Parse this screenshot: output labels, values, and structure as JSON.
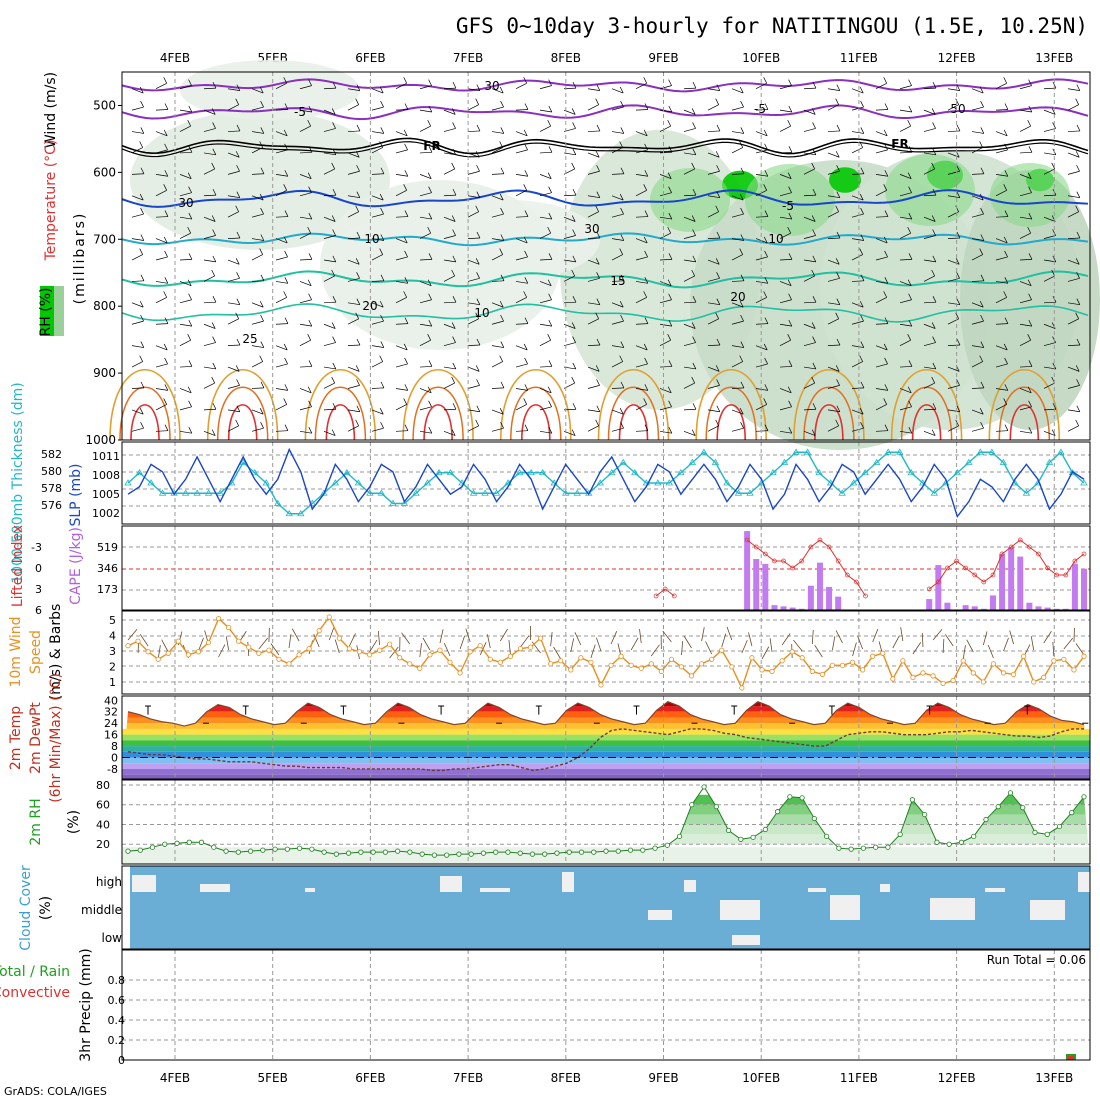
{
  "title": "GFS 0~10day 3-hourly for NATITINGOU (1.5E, 10.25N)",
  "credit": "GrADS: COLA/IGES",
  "dates": [
    "4FEB",
    "5FEB",
    "6FEB",
    "7FEB",
    "8FEB",
    "9FEB",
    "10FEB",
    "11FEB",
    "12FEB",
    "13FEB"
  ],
  "colors": {
    "rh_dark": "#00c800",
    "rh_light": "#cfe8cf",
    "purple": "#8a2fbf",
    "blue": "#1846c8",
    "cyan": "#22aacc",
    "teal": "#20c0a0",
    "orange": "#e0a030",
    "red": "#e03030",
    "cape": "#c27bf0",
    "cloud_bg": "#6aaed6",
    "slp": "#1846c8",
    "thick": "#22b8c8"
  },
  "panels": {
    "profile": {
      "label_wind": "Wind (m/s)",
      "label_temp": "Temperature (°C)",
      "label_rh": "RH (%)",
      "label_units": "(millibars)",
      "yticks": [
        "500",
        "600",
        "700",
        "800",
        "900",
        "1000"
      ],
      "contour_labels": [
        {
          "text": "-5",
          "color": "purple"
        },
        {
          "text": "-5",
          "color": "purple"
        },
        {
          "text": "FR",
          "color": "black"
        },
        {
          "text": "FR",
          "color": "black"
        },
        {
          "text": "-5",
          "color": "blue"
        },
        {
          "text": "10",
          "color": "cyan"
        },
        {
          "text": "10",
          "color": "cyan"
        },
        {
          "text": "15",
          "color": "teal"
        },
        {
          "text": "20",
          "color": "teal"
        },
        {
          "text": "20",
          "color": "teal"
        },
        {
          "text": "25",
          "color": "orange"
        },
        {
          "text": "30",
          "color": "gray"
        },
        {
          "text": "30",
          "color": "gray"
        },
        {
          "text": "30",
          "color": "gray"
        },
        {
          "text": "50",
          "color": "gray"
        },
        {
          "text": "10",
          "color": "gray"
        }
      ]
    },
    "slp": {
      "label_left": "1000-500mb Thickness (dm)",
      "label_right": "SLP (mb)",
      "yticks_left": [
        "582",
        "580",
        "578",
        "576"
      ],
      "yticks_right": [
        "1011",
        "1008",
        "1005",
        "1002"
      ],
      "ylim_slp": [
        1002,
        1013
      ],
      "ylim_thick": [
        575,
        583
      ]
    },
    "cape": {
      "label_left": "Lifted Index",
      "label_right": "CAPE (J/kg)",
      "yticks_left": [
        "-3",
        "0",
        "3",
        "6"
      ],
      "yticks_right": [
        "519",
        "346",
        "173"
      ],
      "ylim_li": [
        -6,
        6
      ],
      "ylim_cape": [
        0,
        692
      ]
    },
    "wind": {
      "label": "10m Wind Speed & Barbs (m/s)",
      "label1": "10m Wind",
      "label2": "Speed",
      "label3": "(m/s) & Barbs",
      "yticks": [
        "5",
        "4",
        "3",
        "2",
        "1"
      ],
      "ylim": [
        0,
        5.5
      ]
    },
    "temp": {
      "label1": "2m Temp",
      "label2": "2m DewPt",
      "label3": "(6hr Min/Max) (°C)",
      "yticks": [
        "40",
        "32",
        "24",
        "16",
        "8",
        "0",
        "-8"
      ],
      "ylim": [
        -15,
        43
      ]
    },
    "rh2m": {
      "label1": "2m RH",
      "label2": "(%)",
      "yticks": [
        "80",
        "60",
        "40",
        "20"
      ],
      "ylim": [
        0,
        85
      ]
    },
    "cloud": {
      "label1": "Cloud Cover",
      "label2": "(%)",
      "levels": [
        "high",
        "middle",
        "low"
      ]
    },
    "precip": {
      "label1": "Total / Rain",
      "label2": "Convective",
      "label3": "3hr Precip (mm)",
      "yticks": [
        "0.8",
        "0.6",
        "0.4",
        "0.2",
        "0"
      ],
      "ylim": [
        0,
        1
      ],
      "run_total": "Run Total = 0.06"
    }
  },
  "chart_data": [
    {
      "type": "line",
      "name": "SLP and 1000-500mb thickness",
      "x_unit": "3-hourly steps from 3FEB 12Z",
      "series": [
        {
          "name": "SLP (mb)",
          "values": [
            1006,
            1007,
            1010,
            1009,
            1006,
            1008,
            1011,
            1008,
            1005,
            1008,
            1011,
            1008,
            1006,
            1008,
            1012,
            1009,
            1004,
            1006,
            1010,
            1008,
            1005,
            1007,
            1010,
            1009,
            1005,
            1007,
            1010,
            1008,
            1006,
            1007,
            1010,
            1008,
            1005,
            1007,
            1010,
            1008,
            1004,
            1007,
            1010,
            1008,
            1006,
            1009,
            1011,
            1008,
            1005,
            1007,
            1010,
            1009,
            1006,
            1008,
            1010,
            1008,
            1005,
            1007,
            1010,
            1008,
            1004,
            1006,
            1010,
            1008,
            1005,
            1007,
            1010,
            1009,
            1006,
            1008,
            1010,
            1008,
            1005,
            1007,
            1010,
            1008,
            1003,
            1005,
            1008,
            1007,
            1005,
            1008,
            1010,
            1008,
            1004,
            1006,
            1009,
            1008
          ]
        },
        {
          "name": "1000-500mb Thickness (dm)",
          "values": [
            579,
            580,
            579,
            578,
            578,
            578,
            578,
            578,
            578,
            579,
            581,
            580,
            579,
            577,
            576,
            576,
            577,
            578,
            579,
            580,
            579,
            578,
            578,
            577,
            577,
            578,
            579,
            580,
            580,
            579,
            578,
            578,
            578,
            579,
            580,
            580,
            580,
            579,
            578,
            578,
            578,
            579,
            580,
            581,
            580,
            579,
            579,
            579,
            580,
            581,
            582,
            581,
            579,
            578,
            578,
            579,
            580,
            581,
            582,
            582,
            580,
            579,
            578,
            579,
            580,
            581,
            582,
            582,
            580,
            579,
            578,
            579,
            580,
            581,
            582,
            582,
            581,
            579,
            578,
            579,
            581,
            582,
            580,
            579
          ]
        }
      ]
    },
    {
      "type": "bar",
      "name": "CAPE and Lifted Index",
      "series": [
        {
          "name": "CAPE (J/kg)",
          "values": [
            0,
            0,
            0,
            0,
            0,
            0,
            0,
            0,
            0,
            0,
            0,
            0,
            0,
            0,
            0,
            0,
            0,
            0,
            0,
            0,
            0,
            0,
            0,
            0,
            0,
            0,
            0,
            0,
            0,
            0,
            0,
            0,
            0,
            0,
            0,
            0,
            0,
            0,
            0,
            0,
            0,
            0,
            0,
            0,
            0,
            0,
            0,
            0,
            0,
            0,
            0,
            0,
            0,
            0,
            0,
            0,
            0,
            0,
            0,
            0,
            0,
            0,
            0,
            0,
            0,
            0,
            0,
            0,
            650,
            420,
            380,
            40,
            30,
            20,
            10,
            200,
            390,
            190,
            110,
            0,
            0,
            0,
            0,
            0,
            0,
            0,
            0,
            0,
            90,
            370,
            60,
            0,
            40,
            30,
            10,
            120,
            460,
            520,
            440,
            60,
            30,
            20,
            10,
            10,
            380,
            340
          ]
        },
        {
          "name": "Lifted Index",
          "values": [
            6,
            6,
            6,
            6,
            6,
            6,
            6,
            6,
            6,
            6,
            6,
            6,
            6,
            6,
            6,
            6,
            6,
            6,
            6,
            6,
            6,
            6,
            6,
            6,
            6,
            6,
            6,
            6,
            6,
            6,
            6,
            6,
            6,
            6,
            6,
            6,
            6,
            6,
            6,
            6,
            6,
            6,
            6,
            6,
            6,
            6,
            6,
            6,
            6,
            6,
            6,
            6,
            6,
            6,
            6,
            6,
            6,
            6,
            4,
            3,
            4,
            6,
            6,
            6,
            6,
            6,
            6,
            6,
            -4,
            -3,
            -2,
            -1,
            -1,
            0,
            -1,
            -3,
            -4,
            -3,
            -1,
            1,
            2,
            4,
            6,
            6,
            6,
            6,
            6,
            6,
            3,
            2,
            0,
            -1,
            0,
            1,
            2,
            1,
            -2,
            -3,
            -4,
            -3,
            -2,
            0,
            1,
            1,
            -1,
            -2
          ]
        }
      ]
    },
    {
      "type": "line",
      "name": "10m Wind Speed",
      "series": [
        {
          "name": "Speed (m/s)",
          "values": [
            3.2,
            3.5,
            2.8,
            2.3,
            2.7,
            3.5,
            2.6,
            2.8,
            3.4,
            5.0,
            4.4,
            3.5,
            3.1,
            2.7,
            2.9,
            2.3,
            2.0,
            2.6,
            3.0,
            4.2,
            5.1,
            3.7,
            3.0,
            2.8,
            2.6,
            2.9,
            3.3,
            2.4,
            2.0,
            1.7,
            2.6,
            2.9,
            2.1,
            1.4,
            2.8,
            3.2,
            2.3,
            2.1,
            2.5,
            3.0,
            3.1,
            3.7,
            2.0,
            2.2,
            1.6,
            2.4,
            2.1,
            0.6,
            1.9,
            2.5,
            1.9,
            1.7,
            2.0,
            1.5,
            2.3,
            1.8,
            1.2,
            2.0,
            2.3,
            2.9,
            1.8,
            0.4,
            2.4,
            1.6,
            1.5,
            2.2,
            2.8,
            2.4,
            1.5,
            1.3,
            1.9,
            1.9,
            2.1,
            1.6,
            2.5,
            2.7,
            1.0,
            2.2,
            1.1,
            1.4,
            1.2,
            0.7,
            0.9,
            2.2,
            1.4,
            0.8,
            2.0,
            1.4,
            1.3,
            2.5,
            0.8,
            1.1,
            2.2,
            2.3,
            1.6,
            2.5
          ]
        }
      ]
    },
    {
      "type": "line",
      "name": "2m Temp and DewPt",
      "series": [
        {
          "name": "2m Temp (°C)",
          "values": [
            32,
            30,
            27,
            25,
            24,
            22,
            24,
            32,
            37,
            35,
            30,
            27,
            25,
            23,
            24,
            32,
            38,
            35,
            30,
            27,
            25,
            23,
            24,
            32,
            38,
            35,
            30,
            27,
            25,
            23,
            24,
            32,
            38,
            35,
            30,
            27,
            25,
            23,
            24,
            33,
            38,
            35,
            30,
            27,
            25,
            23,
            24,
            33,
            39,
            36,
            30,
            27,
            25,
            23,
            24,
            33,
            39,
            36,
            30,
            27,
            25,
            23,
            24,
            33,
            38,
            35,
            30,
            27,
            25,
            23,
            24,
            33,
            38,
            35,
            30,
            27,
            25,
            23,
            24,
            32,
            37,
            34,
            29,
            26,
            25,
            23
          ]
        },
        {
          "name": "2m DewPt (°C)",
          "values": [
            4,
            3,
            2,
            2,
            1,
            0,
            -1,
            -1,
            -2,
            -3,
            -3,
            -3,
            -4,
            -5,
            -6,
            -6,
            -7,
            -7,
            -7,
            -7,
            -8,
            -8,
            -8,
            -8,
            -8,
            -8,
            -8,
            -9,
            -9,
            -8,
            -8,
            -7,
            -6,
            -5,
            -5,
            -7,
            -9,
            -8,
            -6,
            -4,
            0,
            6,
            14,
            19,
            20,
            19,
            18,
            17,
            16,
            18,
            20,
            20,
            19,
            17,
            16,
            14,
            13,
            12,
            11,
            10,
            9,
            8,
            8,
            12,
            16,
            17,
            18,
            18,
            17,
            16,
            16,
            16,
            17,
            18,
            18,
            19,
            18,
            17,
            16,
            15,
            15,
            14,
            15,
            18,
            20,
            20
          ]
        }
      ]
    },
    {
      "type": "area",
      "name": "2m RH",
      "series": [
        {
          "name": "2m RH (%)",
          "values": [
            13,
            14,
            17,
            20,
            21,
            22,
            22,
            17,
            13,
            12,
            13,
            14,
            15,
            15,
            16,
            15,
            12,
            10,
            11,
            12,
            12,
            12,
            13,
            12,
            10,
            9,
            9,
            10,
            10,
            11,
            12,
            12,
            11,
            10,
            10,
            11,
            12,
            12,
            12,
            13,
            13,
            14,
            14,
            16,
            19,
            28,
            60,
            78,
            58,
            34,
            25,
            27,
            35,
            53,
            68,
            67,
            46,
            28,
            16,
            15,
            16,
            17,
            17,
            30,
            65,
            50,
            22,
            20,
            22,
            28,
            45,
            58,
            72,
            57,
            32,
            30,
            38,
            52,
            68
          ]
        }
      ]
    },
    {
      "type": "table",
      "name": "Cloud Cover",
      "columns": [
        "high",
        "middle",
        "low"
      ],
      "note": "high cloud patches mostly intermittent; middle cloud from 9FEB; sparse low cloud near 10FEB"
    },
    {
      "type": "bar",
      "name": "3hr Precip",
      "values_mm": {
        "total": 0.06,
        "convective": 0.04
      },
      "at": "13FEB",
      "ylim": [
        0,
        1
      ]
    }
  ]
}
